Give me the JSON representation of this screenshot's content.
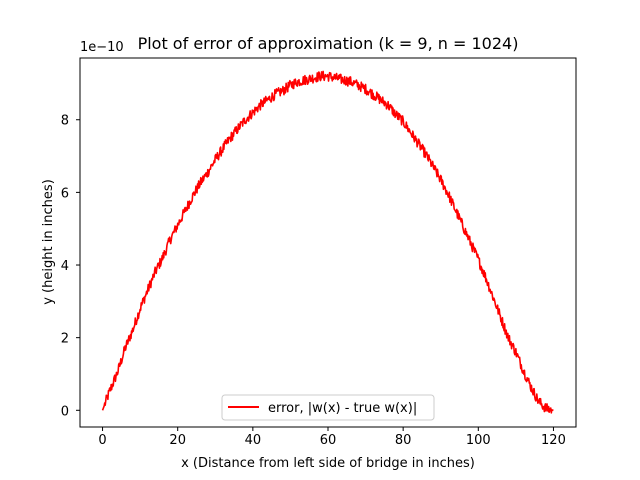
{
  "chart_data": {
    "type": "line",
    "title": "Plot of error of approximation (k = 9, n = 1024)",
    "xlabel": "x (Distance from left side of bridge in inches)",
    "ylabel": "y (height in inches)",
    "y_offset_label": "1e−10",
    "xlim": [
      -6,
      126
    ],
    "ylim": [
      -0.46,
      9.7
    ],
    "x_ticks": [
      0,
      20,
      40,
      60,
      80,
      100,
      120
    ],
    "x_tick_labels": [
      "0",
      "20",
      "40",
      "60",
      "80",
      "100",
      "120"
    ],
    "y_ticks": [
      0,
      2,
      4,
      6,
      8
    ],
    "y_tick_labels": [
      "0",
      "2",
      "4",
      "6",
      "8"
    ],
    "y_scale_factor": 1e-10,
    "grid": false,
    "legend_position": "bottom-center",
    "series": [
      {
        "name": "error, |w(x) - true w(x)|",
        "color": "#ff0000",
        "x": [
          0,
          2,
          4,
          6,
          8,
          10,
          12,
          14,
          16,
          18,
          20,
          22,
          24,
          26,
          28,
          30,
          32,
          34,
          36,
          38,
          40,
          42,
          44,
          46,
          48,
          50,
          52,
          54,
          56,
          58,
          60,
          62,
          64,
          66,
          68,
          70,
          72,
          74,
          76,
          78,
          80,
          82,
          84,
          86,
          88,
          90,
          92,
          94,
          96,
          98,
          100,
          102,
          104,
          106,
          108,
          110,
          112,
          114,
          116,
          118,
          120
        ],
        "y": [
          0.0,
          0.55,
          1.05,
          1.7,
          2.2,
          2.8,
          3.3,
          3.8,
          4.2,
          4.7,
          5.1,
          5.5,
          5.9,
          6.25,
          6.55,
          6.9,
          7.2,
          7.5,
          7.75,
          8.0,
          8.2,
          8.4,
          8.55,
          8.7,
          8.8,
          8.95,
          9.05,
          9.1,
          9.15,
          9.2,
          9.2,
          9.15,
          9.1,
          9.05,
          8.95,
          8.85,
          8.7,
          8.55,
          8.4,
          8.15,
          7.95,
          7.65,
          7.35,
          7.05,
          6.7,
          6.35,
          5.95,
          5.5,
          5.05,
          4.6,
          4.15,
          3.65,
          3.1,
          2.55,
          2.0,
          1.6,
          1.1,
          0.65,
          0.25,
          0.05,
          0.0
        ]
      }
    ]
  }
}
